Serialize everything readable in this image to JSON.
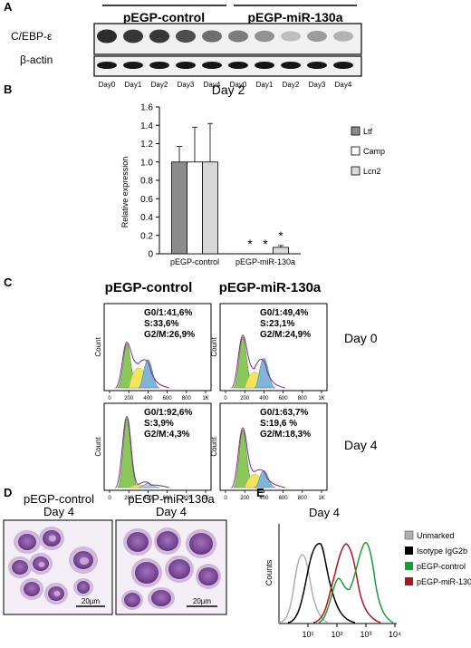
{
  "panels": {
    "A": {
      "letter": "A",
      "group_labels": [
        "pEGP-control",
        "pEGP-miR-130a"
      ],
      "row_labels": [
        "C/EBP-ε",
        "β-actin"
      ],
      "lanes": [
        "Day0",
        "Day1",
        "Day2",
        "Day3",
        "Day4",
        "Day0",
        "Day1",
        "Day2",
        "Day3",
        "Day4"
      ],
      "cebp_intensity": [
        0.85,
        0.8,
        0.8,
        0.7,
        0.55,
        0.5,
        0.4,
        0.2,
        0.35,
        0.25
      ],
      "actin_intensity": [
        0.95,
        0.95,
        0.95,
        0.95,
        0.95,
        0.95,
        0.95,
        0.95,
        0.95,
        0.95
      ]
    },
    "B": {
      "letter": "B",
      "sig_marks": [
        "*",
        "*",
        "*"
      ]
    },
    "C": {
      "letter": "C",
      "col_titles": [
        "pEGP-control",
        "pEGP-miR-130a"
      ],
      "row_titles": [
        "Day 0",
        "Day 4"
      ],
      "axis_ylabel": "Count",
      "x_ticks": [
        "0",
        "200",
        "400",
        "600",
        "800",
        "1K"
      ],
      "stats": [
        [
          "G0/1:41,6%",
          "S:33,6%",
          "G2/M:26,9%"
        ],
        [
          "G0/1:49,4%",
          "S:23,1%",
          "G2/M:24,9%"
        ],
        [
          "G0/1:92,6%",
          "S:3,9%",
          "G2/M:4,3%"
        ],
        [
          "G0/1:63,7%",
          "S:19,6 %",
          "G2/M:18,3%"
        ]
      ]
    },
    "D": {
      "letter": "D",
      "titles": [
        "pEGP-control",
        "pEGP-miR-130a"
      ],
      "subtitles": [
        "Day 4",
        "Day 4"
      ],
      "scale_labels": [
        "20µm",
        "20µm"
      ]
    },
    "E": {
      "letter": "E",
      "title": "Day 4",
      "ylabel": "Counts",
      "x_ticks": [
        "10¹",
        "10²",
        "10³",
        "10⁴"
      ],
      "legend": [
        {
          "label": "Unmarked",
          "color": "#b0b0b0"
        },
        {
          "label": "Isotype IgG2b",
          "color": "#000000"
        },
        {
          "label": "pEGP-control",
          "color": "#1f9a3a"
        },
        {
          "label": "pEGP-miR-130a",
          "color": "#b0141e"
        }
      ]
    }
  },
  "chart_data": {
    "type": "bar",
    "title": "Day 2",
    "xlabel": "",
    "ylabel": "Relative expression",
    "ylim": [
      0,
      1.6
    ],
    "yticks": [
      "0",
      "0.2",
      "0.4",
      "0.6",
      "0.8",
      "1.0",
      "1.2",
      "1.4",
      "1.6"
    ],
    "categories": [
      "pEGP-control",
      "pEGP-miR-130a"
    ],
    "series": [
      {
        "name": "Ltf",
        "color": "#8c8c8c",
        "values": [
          1.0,
          0.0
        ],
        "errors": [
          0.17,
          0.0
        ]
      },
      {
        "name": "Camp",
        "color": "#ffffff",
        "values": [
          1.0,
          0.0
        ],
        "errors": [
          0.38,
          0.0
        ]
      },
      {
        "name": "Lcn2",
        "color": "#d9d9d9",
        "values": [
          1.0,
          0.07
        ],
        "errors": [
          0.42,
          0.02
        ]
      }
    ],
    "grid": false,
    "legend_position": "right"
  }
}
